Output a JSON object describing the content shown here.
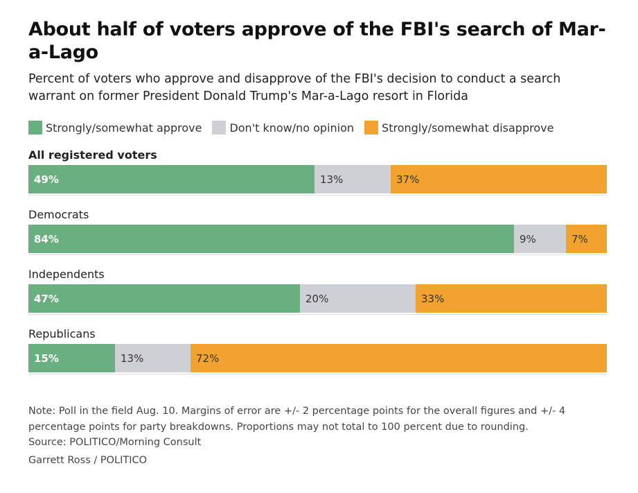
{
  "title": "About half of voters approve of the FBI's search of Mar-a-Lago",
  "subtitle": "Percent of voters who approve and disapprove of the FBI's decision to conduct a search warrant on former President Donald Trump's Mar-a-Lago resort in Florida",
  "colors": {
    "approve": "#6aaf7f",
    "neutral": "#cfcfd6",
    "disapprove": "#f2a22e"
  },
  "legend": [
    {
      "key": "approve",
      "label": "Strongly/somewhat approve"
    },
    {
      "key": "neutral",
      "label": "Don't know/no opinion"
    },
    {
      "key": "disapprove",
      "label": "Strongly/somewhat disapprove"
    }
  ],
  "chart_data": {
    "type": "bar",
    "orientation": "horizontal",
    "stacked": true,
    "title": "About half of voters approve of the FBI's search of Mar-a-Lago",
    "subtitle": "Percent of voters who approve and disapprove of the FBI's decision to conduct a search warrant on former President Donald Trump's Mar-a-Lago resort in Florida",
    "categories": [
      "All registered voters",
      "Democrats",
      "Independents",
      "Republicans"
    ],
    "series": [
      {
        "name": "Strongly/somewhat approve",
        "values": [
          49,
          84,
          47,
          15
        ],
        "labels": [
          "49%",
          "84%",
          "47%",
          "15%"
        ]
      },
      {
        "name": "Don't know/no opinion",
        "values": [
          13,
          9,
          20,
          13
        ],
        "labels": [
          "13%",
          "9%",
          "20%",
          "13%"
        ]
      },
      {
        "name": "Strongly/somewhat disapprove",
        "values": [
          37,
          7,
          33,
          72
        ],
        "labels": [
          "37%",
          "7%",
          "33%",
          "72%"
        ]
      }
    ],
    "legend_position": "top-left",
    "grid": false
  },
  "footer": {
    "note": "Note: Poll in the field Aug. 10. Margins of error are +/- 2 percentage points for the overall figures and +/- 4 percentage points for party breakdowns. Proportions may not total to 100 percent due to rounding.",
    "source": "Source: POLITICO/Morning Consult",
    "credit": "Garrett Ross / POLITICO"
  }
}
